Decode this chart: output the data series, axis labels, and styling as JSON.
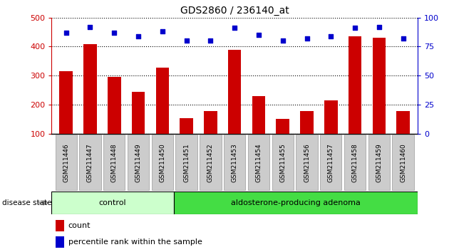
{
  "title": "GDS2860 / 236140_at",
  "samples": [
    "GSM211446",
    "GSM211447",
    "GSM211448",
    "GSM211449",
    "GSM211450",
    "GSM211451",
    "GSM211452",
    "GSM211453",
    "GSM211454",
    "GSM211455",
    "GSM211456",
    "GSM211457",
    "GSM211458",
    "GSM211459",
    "GSM211460"
  ],
  "counts": [
    315,
    408,
    295,
    245,
    328,
    153,
    177,
    390,
    230,
    150,
    178,
    215,
    435,
    430,
    178
  ],
  "percentiles": [
    87,
    92,
    87,
    84,
    88,
    80,
    80,
    91,
    85,
    80,
    82,
    84,
    91,
    92,
    82
  ],
  "control_count": 5,
  "group_labels": [
    "control",
    "aldosterone-producing adenoma"
  ],
  "bar_color": "#cc0000",
  "dot_color": "#0000cc",
  "ylim_left": [
    100,
    500
  ],
  "ylim_right": [
    0,
    100
  ],
  "yticks_left": [
    100,
    200,
    300,
    400,
    500
  ],
  "yticks_right": [
    0,
    25,
    50,
    75,
    100
  ],
  "control_bg": "#ccffcc",
  "adenoma_bg": "#44dd44",
  "label_bg": "#cccccc",
  "bg_color": "#ffffff",
  "legend_count_label": "count",
  "legend_percentile_label": "percentile rank within the sample",
  "disease_state_label": "disease state"
}
